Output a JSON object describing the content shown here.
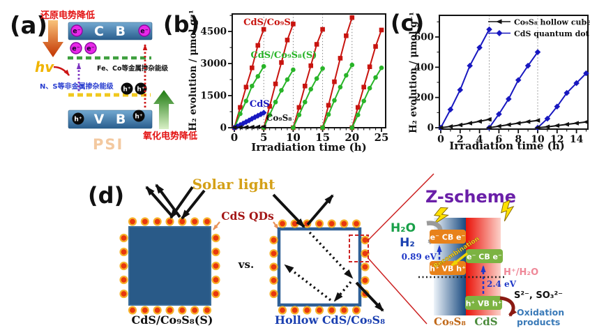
{
  "figure": {
    "panel_a": {
      "label": "(a)",
      "reduction_text": "还原电势降低",
      "cb_label": "C B",
      "vb_label": "V B",
      "electron": "e⁻",
      "hole": "h⁺",
      "hv": "hv",
      "metal_levels": "Fe、Co等金属掺杂能级",
      "nonmetal_levels": "N、S等非金属掺杂能级",
      "oxidation_text": "氧化电势降低",
      "psi": "PSI"
    },
    "panel_b": {
      "label": "(b)"
    },
    "panel_c": {
      "label": "(c)"
    },
    "panel_d": {
      "label": "(d)",
      "solar_light": "Solar light",
      "cds_qds": "CdS QDs",
      "vs": "vs.",
      "solid_cube_label": "CdS/Co₉S₈(S)",
      "hollow_cube_label": "Hollow CdS/Co₉S₈",
      "zscheme": {
        "title": "Z-scheme",
        "h2o": "H₂O",
        "h2": "H₂",
        "cb_text": "e⁻ CB e⁻",
        "vb_text": "h⁺ VB h⁺",
        "ev_co9s8": "0.89 eV",
        "ev_cds": "2.4 eV",
        "recombination": "Recombination",
        "redox_level": "H⁺/H₂O",
        "sacrificial": "S²⁻, SO₃²⁻",
        "oxidation_line1": "Oxidation",
        "oxidation_line2": "products",
        "co9s8": "Co₉S₈",
        "cds": "CdS"
      },
      "colors": {
        "solar_light": "#d4a017",
        "cds_qds": "#a31515",
        "hollow_label": "#1a3fb0",
        "zscheme_title": "#6a1fa8"
      }
    }
  },
  "chart_data": [
    {
      "id": "b",
      "type": "line",
      "title": "",
      "xlabel": "Irradiation time (h)",
      "ylabel": "H₂ evolution / μmol g⁻¹",
      "xlim": [
        0,
        25.7
      ],
      "ylim": [
        0,
        5320
      ],
      "xticks": [
        0,
        5,
        10,
        15,
        20,
        25
      ],
      "yticks": [
        0,
        1500,
        3000,
        4500
      ],
      "x_minor_step": 1,
      "y_minor_step": 750,
      "grid_vlines": [
        5,
        10,
        15,
        20
      ],
      "grid": "vertical-dotted",
      "legend_position": "none",
      "series": [
        {
          "name": "CdS/Co₉S₈",
          "color": "#c8140f",
          "marker": "square",
          "dash": null,
          "cycles": [
            [
              [
                0,
                0
              ],
              [
                1,
                950
              ],
              [
                2,
                1900
              ],
              [
                3,
                2800
              ],
              [
                4,
                3850
              ],
              [
                5,
                4600
              ]
            ],
            [
              [
                5,
                0
              ],
              [
                6,
                1000
              ],
              [
                7,
                2050
              ],
              [
                8,
                3050
              ],
              [
                9,
                4100
              ],
              [
                10,
                4850
              ]
            ],
            [
              [
                10,
                0
              ],
              [
                11,
                950
              ],
              [
                12,
                1950
              ],
              [
                13,
                2900
              ],
              [
                14,
                3900
              ],
              [
                15,
                4600
              ]
            ],
            [
              [
                15,
                0
              ],
              [
                16,
                1050
              ],
              [
                17,
                2150
              ],
              [
                18,
                3250
              ],
              [
                19,
                4300
              ],
              [
                20,
                5150
              ]
            ],
            [
              [
                20,
                0
              ],
              [
                21,
                950
              ],
              [
                22,
                1900
              ],
              [
                23,
                2850
              ],
              [
                24,
                3800
              ],
              [
                25,
                4570
              ]
            ]
          ]
        },
        {
          "name": "CdS/Co₉S₈(S)",
          "color": "#28b428",
          "marker": "circle",
          "dash": null,
          "cycles": [
            [
              [
                0,
                0
              ],
              [
                1,
                650
              ],
              [
                2,
                1250
              ],
              [
                3,
                1950
              ],
              [
                4,
                2400
              ],
              [
                5,
                2870
              ]
            ],
            [
              [
                5,
                0
              ],
              [
                6,
                600
              ],
              [
                7,
                1200
              ],
              [
                8,
                1750
              ],
              [
                9,
                2250
              ],
              [
                10,
                2710
              ]
            ],
            [
              [
                10,
                0
              ],
              [
                11,
                600
              ],
              [
                12,
                1200
              ],
              [
                13,
                1800
              ],
              [
                14,
                2300
              ],
              [
                15,
                2770
              ]
            ],
            [
              [
                15,
                0
              ],
              [
                16,
                620
              ],
              [
                17,
                1280
              ],
              [
                18,
                1900
              ],
              [
                19,
                2450
              ],
              [
                20,
                2935
              ]
            ],
            [
              [
                20,
                0
              ],
              [
                21,
                600
              ],
              [
                22,
                1250
              ],
              [
                23,
                1850
              ],
              [
                24,
                2350
              ],
              [
                25,
                2800
              ]
            ]
          ]
        },
        {
          "name": "CdS",
          "color": "#1818c0",
          "marker": "diamond",
          "dash": null,
          "cycles": [
            [
              [
                0,
                0
              ],
              [
                0.5,
                60
              ],
              [
                1,
                130
              ],
              [
                1.5,
                200
              ],
              [
                2,
                270
              ],
              [
                2.5,
                340
              ],
              [
                3,
                420
              ],
              [
                3.5,
                490
              ],
              [
                4,
                560
              ],
              [
                4.5,
                630
              ],
              [
                5,
                700
              ]
            ]
          ]
        },
        {
          "name": "Co₉S₈",
          "color": "#111111",
          "marker": "tri-left",
          "dash": "5,3",
          "cycles": [
            [
              [
                0,
                10
              ],
              [
                1,
                18
              ],
              [
                2,
                25
              ],
              [
                3,
                32
              ],
              [
                4,
                40
              ],
              [
                5,
                48
              ]
            ]
          ]
        }
      ],
      "annotations": [
        {
          "text": "CdS/Co₉S₈",
          "color": "#c8140f",
          "x": 5.9,
          "y": 4800,
          "size": 13
        },
        {
          "text": "CdS/Co₉S₈(S)",
          "color": "#28b428",
          "x": 8.4,
          "y": 3260,
          "size": 13
        },
        {
          "text": "CdS",
          "color": "#1818c0",
          "x": 4.3,
          "y": 980,
          "size": 13
        },
        {
          "text": "Co₉S₈",
          "color": "#111111",
          "x": 7.6,
          "y": 330,
          "size": 12
        }
      ]
    },
    {
      "id": "c",
      "type": "line",
      "title": "",
      "xlabel": "Irradiation time (h)",
      "ylabel": "H₂ evolution / μmol g⁻¹",
      "xlim": [
        0,
        15.2
      ],
      "ylim": [
        0,
        752
      ],
      "xticks": [
        0,
        2,
        4,
        6,
        8,
        10,
        12,
        14
      ],
      "yticks": [
        0,
        200,
        400,
        600
      ],
      "x_minor_step": 1,
      "y_minor_step": 100,
      "grid_vlines": [
        5,
        10
      ],
      "grid": "vertical-dotted",
      "legend_position": "top-right",
      "legend": [
        {
          "name": "Co₉S₈ hollow cube",
          "color": "#111111",
          "marker": "tri-left"
        },
        {
          "name": "CdS quantum dot",
          "color": "#1818c0",
          "marker": "diamond"
        }
      ],
      "series": [
        {
          "name": "CdS quantum dot",
          "color": "#1818c0",
          "marker": "diamond",
          "dash": null,
          "cycles": [
            [
              [
                0,
                0
              ],
              [
                1,
                120
              ],
              [
                2,
                250
              ],
              [
                3,
                410
              ],
              [
                4,
                530
              ],
              [
                5,
                650
              ]
            ],
            [
              [
                5,
                0
              ],
              [
                6,
                90
              ],
              [
                7,
                190
              ],
              [
                8,
                315
              ],
              [
                9,
                410
              ],
              [
                10,
                500
              ]
            ],
            [
              [
                10,
                0
              ],
              [
                11,
                60
              ],
              [
                12,
                140
              ],
              [
                13,
                230
              ],
              [
                14,
                295
              ],
              [
                15,
                360
              ]
            ]
          ]
        },
        {
          "name": "Co₉S₈ hollow cube",
          "color": "#111111",
          "marker": "tri-left",
          "dash": null,
          "cycles": [
            [
              [
                0,
                0
              ],
              [
                1,
                8
              ],
              [
                2,
                18
              ],
              [
                3,
                30
              ],
              [
                4,
                42
              ],
              [
                5,
                55
              ]
            ],
            [
              [
                5,
                0
              ],
              [
                6,
                10
              ],
              [
                7,
                20
              ],
              [
                8,
                30
              ],
              [
                9,
                40
              ],
              [
                10,
                48
              ]
            ],
            [
              [
                10,
                0
              ],
              [
                11,
                6
              ],
              [
                12,
                14
              ],
              [
                13,
                22
              ],
              [
                14,
                30
              ],
              [
                15,
                38
              ]
            ]
          ]
        }
      ],
      "annotations": []
    }
  ]
}
